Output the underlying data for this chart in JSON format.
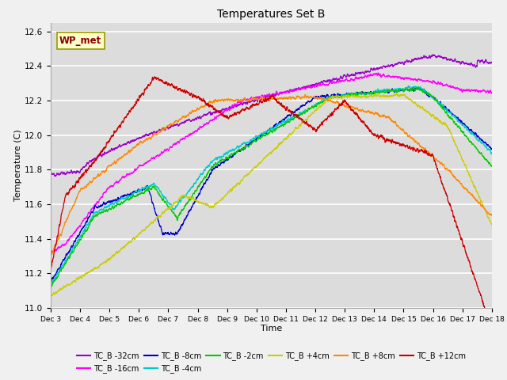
{
  "title": "Temperatures Set B",
  "xlabel": "Time",
  "ylabel": "Temperature (C)",
  "ylim": [
    11.0,
    12.65
  ],
  "yticks": [
    11.0,
    11.2,
    11.4,
    11.6,
    11.8,
    12.0,
    12.2,
    12.4,
    12.6
  ],
  "n_points": 3600,
  "series": [
    {
      "label": "TC_B -32cm",
      "color": "#9900cc"
    },
    {
      "label": "TC_B -16cm",
      "color": "#ff00ff"
    },
    {
      "label": "TC_B -8cm",
      "color": "#0000cc"
    },
    {
      "label": "TC_B -4cm",
      "color": "#00cccc"
    },
    {
      "label": "TC_B -2cm",
      "color": "#00cc00"
    },
    {
      "label": "TC_B +4cm",
      "color": "#cccc00"
    },
    {
      "label": "TC_B +8cm",
      "color": "#ff8800"
    },
    {
      "label": "TC_B +12cm",
      "color": "#cc0000"
    }
  ],
  "annotation_text": "WP_met",
  "x_tick_labels": [
    "Dec 3",
    "Dec 4",
    "Dec 5",
    "Dec 6",
    "Dec 7",
    "Dec 8",
    "Dec 9",
    "Dec 10",
    "Dec 11",
    "Dec 12",
    "Dec 13",
    "Dec 14",
    "Dec 15",
    "Dec 16",
    "Dec 17",
    "Dec 18"
  ],
  "linewidth": 0.9,
  "bg_color": "#dcdcdc",
  "fig_bg": "#f0f0f0"
}
